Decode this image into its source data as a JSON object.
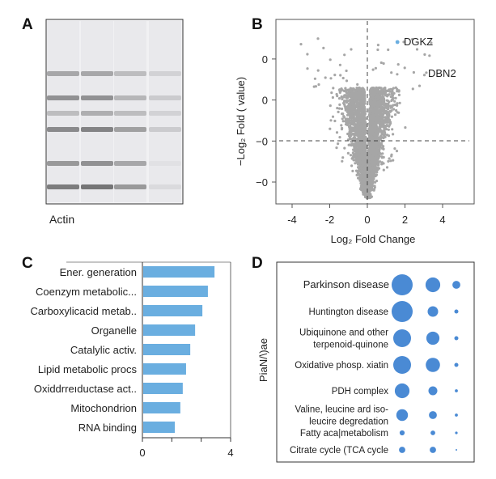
{
  "panels": {
    "a": {
      "label": "A",
      "caption": "Actin"
    },
    "b": {
      "label": "B"
    },
    "c": {
      "label": "C"
    },
    "d": {
      "label": "D"
    }
  },
  "chart_data": [
    {
      "panel": "A",
      "type": "gel-image",
      "caption": "Actin",
      "lanes": 4,
      "band_intensity": [
        [
          0.45,
          0.6,
          0.3,
          0.65,
          0.55,
          0.75
        ],
        [
          0.45,
          0.6,
          0.4,
          0.7,
          0.6,
          0.8
        ],
        [
          0.3,
          0.35,
          0.3,
          0.5,
          0.45,
          0.55
        ],
        [
          0.15,
          0.2,
          0.15,
          0.2,
          0.05,
          0.1
        ]
      ]
    },
    {
      "panel": "B",
      "type": "scatter",
      "xlabel": "Log₂ Fold Change",
      "ylabel": "−Log₂ Fold ( value)",
      "xlim": [
        -5,
        5.6
      ],
      "x_ticks": [
        -4,
        -2,
        0,
        2,
        4
      ],
      "x_tick_labels": [
        "-4",
        "-2",
        "0",
        "2",
        "4"
      ],
      "y_tick_labels": [
        "0",
        "0",
        "−0",
        "−0"
      ],
      "reference_lines": {
        "vertical_x": 0,
        "horizontal_at_tick": "−0"
      },
      "point_color": "#a6a6a6",
      "highlight_color": "#6aaee0",
      "annotations": [
        {
          "label": "DGKZ",
          "x": 1.6,
          "highlighted": true
        },
        {
          "label": "DBN2",
          "x": 2.8
        }
      ],
      "grid": false
    },
    {
      "panel": "C",
      "type": "bar",
      "orientation": "horizontal",
      "categories": [
        "Ener. generation",
        "Coenzym metabolic...",
        "Carboxylicacid metab..",
        "Organelle",
        "Catalylic activ.",
        "Lipid metabolic procs",
        "Oxiddrreıductase act..",
        "Mitochondrion",
        "RNA binding"
      ],
      "values": [
        3.27,
        2.97,
        2.72,
        2.39,
        2.17,
        1.98,
        1.83,
        1.72,
        1.47
      ],
      "xlim": [
        0,
        4
      ],
      "x_tick_labels": [
        "0",
        "4"
      ],
      "bar_color": "#6aaee0",
      "grid": false
    },
    {
      "panel": "D",
      "type": "bubble",
      "ylabel": "PiaN/\\)ae",
      "categories": [
        "Parkinson disease",
        "Huntington disease",
        "Ubiquinone and other\nterpenoid-quinone",
        "Oxidative phosp. xiatin",
        "PDH complex",
        "Valine, leucine ard iso-\nleucire degredation",
        "Fatty aca|metabolism",
        "Citrate cycle (TCA cycle"
      ],
      "columns": 3,
      "relative_sizes": [
        [
          1.0,
          0.7,
          0.38
        ],
        [
          1.0,
          0.5,
          0.19
        ],
        [
          0.85,
          0.62,
          0.19
        ],
        [
          0.85,
          0.68,
          0.19
        ],
        [
          0.7,
          0.42,
          0.15
        ],
        [
          0.55,
          0.38,
          0.15
        ],
        [
          0.24,
          0.22,
          0.12
        ],
        [
          0.3,
          0.3,
          0.08
        ]
      ],
      "bubble_color": "#4a8ad4"
    }
  ]
}
